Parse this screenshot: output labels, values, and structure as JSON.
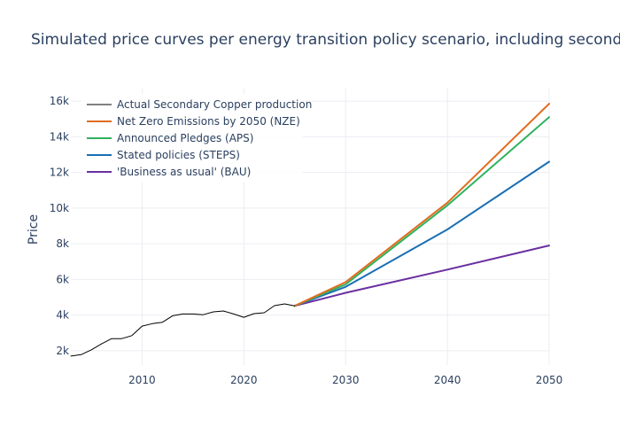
{
  "chart_data": {
    "type": "line",
    "title": "Simulated price curves per energy transition policy scenario, including secondary sup",
    "xlabel": "",
    "ylabel": "Price",
    "xlim": [
      2003,
      2050
    ],
    "ylim": [
      1200,
      16700
    ],
    "x_ticks": [
      2010,
      2020,
      2030,
      2040,
      2050
    ],
    "x_tick_labels": [
      "2010",
      "2020",
      "2030",
      "2040",
      "2050"
    ],
    "y_ticks": [
      2000,
      4000,
      6000,
      8000,
      10000,
      12000,
      14000,
      16000
    ],
    "y_tick_labels": [
      "2k",
      "4k",
      "6k",
      "8k",
      "10k",
      "12k",
      "14k",
      "16k"
    ],
    "grid": true,
    "legend_position": "top-left",
    "series": [
      {
        "name": "Actual Secondary Copper production",
        "color": "#000000",
        "x": [
          2003,
          2004,
          2005,
          2006,
          2007,
          2008,
          2009,
          2010,
          2011,
          2012,
          2013,
          2014,
          2015,
          2016,
          2017,
          2018,
          2019,
          2020,
          2021,
          2022,
          2023,
          2024,
          2025
        ],
        "y": [
          1700,
          1780,
          2050,
          2380,
          2680,
          2680,
          2850,
          3380,
          3520,
          3600,
          3960,
          4060,
          4060,
          4020,
          4180,
          4230,
          4060,
          3880,
          4080,
          4130,
          4530,
          4630,
          4520
        ]
      },
      {
        "name": "Net Zero Emissions by 2050 (NZE)",
        "color": "#e06c1f",
        "x": [
          2025,
          2030,
          2040,
          2050
        ],
        "y": [
          4520,
          5850,
          10300,
          15850
        ]
      },
      {
        "name": "Announced Pledges (APS)",
        "color": "#2fb25e",
        "x": [
          2025,
          2030,
          2040,
          2050
        ],
        "y": [
          4520,
          5720,
          10150,
          15100
        ]
      },
      {
        "name": "Stated policies (STEPS)",
        "color": "#1a6fb5",
        "x": [
          2025,
          2030,
          2040,
          2050
        ],
        "y": [
          4520,
          5580,
          8800,
          12600
        ]
      },
      {
        "name": "'Business as usual' (BAU)",
        "color": "#6a2fa0",
        "x": [
          2025,
          2030,
          2040,
          2050
        ],
        "y": [
          4520,
          5250,
          6550,
          7900
        ]
      }
    ]
  }
}
